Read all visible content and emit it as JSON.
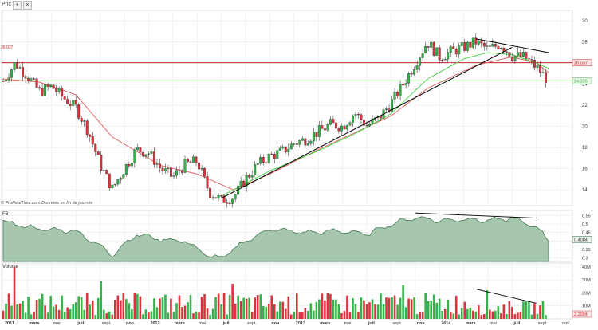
{
  "toolbar": {
    "price_label": "Prix",
    "plus_sign": "+",
    "close_sign": "×"
  },
  "panels": {
    "price": {
      "label": "Prix"
    },
    "fb": {
      "label": "FB"
    },
    "volume": {
      "label": "Volume"
    }
  },
  "attribution": "© ProRealTime.com  Données en fin de journée",
  "colors": {
    "up": "#35b24a",
    "down": "#d9333b",
    "ma_slow": "#e15a5a",
    "ma_fast": "#3fd33f",
    "resistance": "#c62828",
    "support": "#7ee07e",
    "indicator_fill": "#a6c6ad",
    "indicator_stroke": "#2f6b3d",
    "trendline": "#000000",
    "grid": "#e6e6e6"
  },
  "chart_data": [
    {
      "type": "candlestick",
      "panel": "price",
      "title": "",
      "time_axis": [
        "2011",
        "mars",
        "mai",
        "juil",
        "sept.",
        "nov.",
        "2012",
        "mars",
        "mai",
        "juil",
        "sept.",
        "nov.",
        "2013",
        "mars",
        "mai",
        "juil",
        "sept.",
        "nov.",
        "2014",
        "mars",
        "mai",
        "juil",
        "sept.",
        "nov"
      ],
      "y_ticks": [
        14,
        16,
        18,
        20,
        22,
        24,
        26,
        28,
        30
      ],
      "ylim": [
        12.5,
        31
      ],
      "grid": true,
      "price_tags": [
        "26.037",
        "24.326"
      ],
      "horizontal_lines": [
        {
          "name": "resistance",
          "value": 26.04
        },
        {
          "name": "support",
          "value": 24.33
        }
      ],
      "trendlines": [
        {
          "name": "uptrend",
          "from": [
            "2012-07",
            13.2
          ],
          "to": [
            "2014-07",
            27.5
          ]
        },
        {
          "name": "downtrend",
          "from": [
            "2014-04",
            28.3
          ],
          "to": [
            "2014-10",
            27.0
          ]
        }
      ],
      "moving_averages": [
        {
          "name": "slow",
          "anchors": [
            [
              "2011-01",
              24.5
            ],
            [
              "2011-04",
              24.2
            ],
            [
              "2011-07",
              23.0
            ],
            [
              "2011-10",
              19.0
            ],
            [
              "2012-02",
              16.3
            ],
            [
              "2012-05",
              15.5
            ],
            [
              "2012-08",
              14.0
            ],
            [
              "2012-11",
              15.5
            ],
            [
              "2013-03",
              17.8
            ],
            [
              "2013-06",
              19.4
            ],
            [
              "2013-09",
              21.0
            ],
            [
              "2013-12",
              23.6
            ],
            [
              "2014-04",
              25.8
            ],
            [
              "2014-07",
              26.6
            ],
            [
              "2014-09",
              26.0
            ],
            [
              "2014-10",
              25.1
            ]
          ]
        },
        {
          "name": "fast",
          "anchors": [
            [
              "2012-07",
              13.4
            ],
            [
              "2012-11",
              15.8
            ],
            [
              "2013-03",
              17.7
            ],
            [
              "2013-06",
              19.3
            ],
            [
              "2013-09",
              21.2
            ],
            [
              "2013-12",
              24.5
            ],
            [
              "2014-03",
              26.4
            ],
            [
              "2014-05",
              27.0
            ],
            [
              "2014-07",
              26.8
            ],
            [
              "2014-09",
              26.0
            ],
            [
              "2014-10",
              25.5
            ]
          ]
        }
      ],
      "close_anchors": [
        [
          "2011-01",
          24.3
        ],
        [
          "2011-02",
          26.0
        ],
        [
          "2011-03",
          24.8
        ],
        [
          "2011-04",
          23.3
        ],
        [
          "2011-05",
          23.8
        ],
        [
          "2011-06",
          22.7
        ],
        [
          "2011-07",
          21.8
        ],
        [
          "2011-08",
          19.6
        ],
        [
          "2011-09",
          16.4
        ],
        [
          "2011-10",
          14.1
        ],
        [
          "2011-11",
          16.0
        ],
        [
          "2011-12",
          17.8
        ],
        [
          "2012-01",
          17.5
        ],
        [
          "2012-02",
          16.0
        ],
        [
          "2012-03",
          15.2
        ],
        [
          "2012-04",
          16.4
        ],
        [
          "2012-05",
          16.7
        ],
        [
          "2012-06",
          13.8
        ],
        [
          "2012-07",
          13.0
        ],
        [
          "2012-08",
          13.3
        ],
        [
          "2012-09",
          15.0
        ],
        [
          "2012-10",
          16.4
        ],
        [
          "2012-11",
          17.2
        ],
        [
          "2012-12",
          17.6
        ],
        [
          "2013-01",
          18.4
        ],
        [
          "2013-02",
          18.8
        ],
        [
          "2013-03",
          19.5
        ],
        [
          "2013-04",
          20.2
        ],
        [
          "2013-05",
          20.0
        ],
        [
          "2013-06",
          21.3
        ],
        [
          "2013-07",
          20.1
        ],
        [
          "2013-08",
          20.8
        ],
        [
          "2013-09",
          22.2
        ],
        [
          "2013-10",
          24.0
        ],
        [
          "2013-11",
          26.0
        ],
        [
          "2013-12",
          28.0
        ],
        [
          "2014-01",
          26.6
        ],
        [
          "2014-02",
          27.1
        ],
        [
          "2014-03",
          27.5
        ],
        [
          "2014-04",
          28.0
        ],
        [
          "2014-05",
          27.3
        ],
        [
          "2014-06",
          27.8
        ],
        [
          "2014-07",
          26.7
        ],
        [
          "2014-08",
          26.6
        ],
        [
          "2014-09",
          25.6
        ],
        [
          "2014-10",
          24.3
        ]
      ],
      "num_bars": 195
    },
    {
      "type": "area",
      "panel": "FB",
      "title": "",
      "series": [
        {
          "name": "FB",
          "value_tag": "0.4084"
        }
      ],
      "y_ticks": [
        0.3,
        0.35,
        0.4,
        0.45,
        0.5,
        0.55
      ],
      "ylim": [
        0.28,
        0.58
      ],
      "anchors": [
        [
          "2011-01",
          0.515
        ],
        [
          "2011-02",
          0.5
        ],
        [
          "2011-04",
          0.47
        ],
        [
          "2011-07",
          0.46
        ],
        [
          "2011-09",
          0.37
        ],
        [
          "2011-10",
          0.32
        ],
        [
          "2011-12",
          0.44
        ],
        [
          "2012-02",
          0.41
        ],
        [
          "2012-04",
          0.4
        ],
        [
          "2012-06",
          0.31
        ],
        [
          "2012-07",
          0.3
        ],
        [
          "2012-09",
          0.4
        ],
        [
          "2012-11",
          0.47
        ],
        [
          "2013-02",
          0.45
        ],
        [
          "2013-05",
          0.46
        ],
        [
          "2013-07",
          0.44
        ],
        [
          "2013-09",
          0.5
        ],
        [
          "2013-11",
          0.54
        ],
        [
          "2014-01",
          0.52
        ],
        [
          "2014-03",
          0.53
        ],
        [
          "2014-05",
          0.52
        ],
        [
          "2014-07",
          0.535
        ],
        [
          "2014-09",
          0.48
        ],
        [
          "2014-10",
          0.41
        ]
      ],
      "trendlines": [
        {
          "name": "divergence",
          "from": [
            "2013-11",
            0.565
          ],
          "to": [
            "2014-09",
            0.535
          ]
        }
      ]
    },
    {
      "type": "bar",
      "panel": "Volume",
      "title": "",
      "y_ticks": [
        "10M",
        "20M",
        "30M",
        "40M"
      ],
      "ylim": [
        0,
        43
      ],
      "unit": "M",
      "series": [
        {
          "name": "Volume",
          "value_tag": "2.2084"
        }
      ],
      "typical_range": [
        3,
        20
      ],
      "spikes": [
        [
          "2011-02",
          40
        ],
        [
          "2011-09",
          29
        ],
        [
          "2012-08",
          27
        ],
        [
          "2013-10",
          26
        ],
        [
          "2014-05",
          22
        ]
      ],
      "trendlines": [
        {
          "name": "decreasing-volume",
          "from": [
            "2014-04",
            23
          ],
          "to": [
            "2014-09",
            12
          ]
        }
      ]
    }
  ]
}
